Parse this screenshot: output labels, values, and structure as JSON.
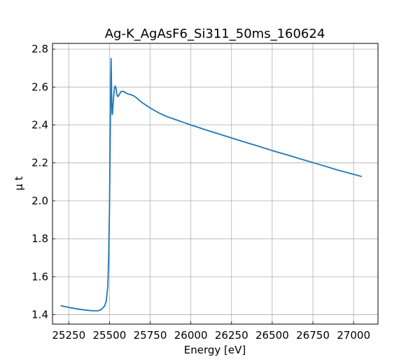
{
  "chart_data": {
    "type": "line",
    "title": "Ag-K_AgAsF6_Si311_50ms_160624",
    "xlabel": "Energy [eV]",
    "ylabel": "μ t",
    "xlim": [
      25150,
      27150
    ],
    "ylim": [
      1.35,
      2.83
    ],
    "xticks": [
      25250,
      25500,
      25750,
      26000,
      26250,
      26500,
      26750,
      27000
    ],
    "yticks": [
      1.4,
      1.6,
      1.8,
      2.0,
      2.2,
      2.4,
      2.6,
      2.8
    ],
    "xtick_labels": [
      "25250",
      "25500",
      "25750",
      "26000",
      "26250",
      "26500",
      "26750",
      "27000"
    ],
    "ytick_labels": [
      "1.4",
      "1.6",
      "1.8",
      "2.0",
      "2.2",
      "2.4",
      "2.6",
      "2.8"
    ],
    "grid": true,
    "tick_direction": "in",
    "series": [
      {
        "color": "#1f77b4",
        "x": [
          25200,
          25250,
          25300,
          25350,
          25400,
          25430,
          25450,
          25470,
          25480,
          25490,
          25495,
          25500,
          25503,
          25506,
          25508,
          25510,
          25512,
          25514,
          25516,
          25518,
          25520,
          25525,
          25530,
          25535,
          25540,
          25545,
          25550,
          25555,
          25560,
          25570,
          25580,
          25590,
          25600,
          25610,
          25620,
          25630,
          25640,
          25650,
          25660,
          25670,
          25680,
          25700,
          25750,
          25800,
          25850,
          25900,
          25950,
          26000,
          26100,
          26200,
          26300,
          26400,
          26500,
          26600,
          26700,
          26800,
          26900,
          27000,
          27050
        ],
        "y": [
          1.447,
          1.438,
          1.43,
          1.424,
          1.42,
          1.42,
          1.427,
          1.445,
          1.47,
          1.55,
          1.7,
          1.95,
          2.2,
          2.45,
          2.65,
          2.75,
          2.65,
          2.52,
          2.46,
          2.455,
          2.48,
          2.54,
          2.59,
          2.605,
          2.595,
          2.565,
          2.55,
          2.552,
          2.56,
          2.575,
          2.578,
          2.575,
          2.57,
          2.565,
          2.562,
          2.56,
          2.557,
          2.553,
          2.547,
          2.54,
          2.532,
          2.518,
          2.49,
          2.465,
          2.445,
          2.43,
          2.415,
          2.4,
          2.372,
          2.345,
          2.318,
          2.292,
          2.265,
          2.24,
          2.214,
          2.189,
          2.163,
          2.14,
          2.128
        ]
      }
    ]
  }
}
